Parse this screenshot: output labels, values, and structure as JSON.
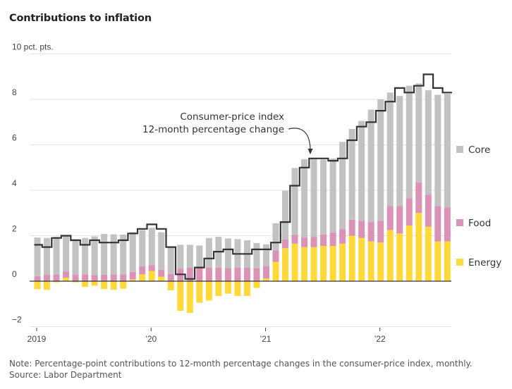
{
  "title": "Contributions to inflation",
  "note": "Note: Percentage-point contributions to 12-month percentage changes in the consumer-price index, monthly.",
  "source": "Source: Labor Department",
  "chart_data": {
    "type": "bar",
    "subtype": "stacked bar with step line",
    "title": "Contributions to inflation",
    "ylabel": "10 pct. pts.",
    "ylim": [
      -2,
      10
    ],
    "yticks": [
      -2,
      0,
      2,
      4,
      6,
      8,
      10
    ],
    "ytick_labels": [
      "−2",
      "0",
      "2",
      "4",
      "6",
      "8",
      "10 pct. pts."
    ],
    "xticks": [
      {
        "label": "2019",
        "index": 0
      },
      {
        "label": "'20",
        "index": 12
      },
      {
        "label": "'21",
        "index": 24
      },
      {
        "label": "'22",
        "index": 36
      }
    ],
    "grid": true,
    "legend_position": "right",
    "colors": {
      "core": "#c2c2c2",
      "food": "#db92b6",
      "energy": "#ffd83a",
      "cpi_line": "#333333"
    },
    "categories": [
      "2019-01",
      "2019-02",
      "2019-03",
      "2019-04",
      "2019-05",
      "2019-06",
      "2019-07",
      "2019-08",
      "2019-09",
      "2019-10",
      "2019-11",
      "2019-12",
      "2020-01",
      "2020-02",
      "2020-03",
      "2020-04",
      "2020-05",
      "2020-06",
      "2020-07",
      "2020-08",
      "2020-09",
      "2020-10",
      "2020-11",
      "2020-12",
      "2021-01",
      "2021-02",
      "2021-03",
      "2021-04",
      "2021-05",
      "2021-06",
      "2021-07",
      "2021-08",
      "2021-09",
      "2021-10",
      "2021-11",
      "2021-12",
      "2022-01",
      "2022-02",
      "2022-03",
      "2022-04",
      "2022-05",
      "2022-06",
      "2022-07",
      "2022-08"
    ],
    "series": [
      {
        "name": "Energy",
        "values": [
          -0.35,
          -0.38,
          -0.05,
          0.15,
          -0.05,
          -0.25,
          -0.2,
          -0.35,
          -0.38,
          -0.33,
          0.08,
          0.3,
          0.45,
          0.2,
          -0.4,
          -1.3,
          -1.4,
          -0.95,
          -0.85,
          -0.65,
          -0.55,
          -0.65,
          -0.65,
          -0.3,
          0.12,
          0.85,
          1.45,
          1.65,
          1.5,
          1.5,
          1.55,
          1.55,
          1.65,
          2.0,
          1.9,
          1.75,
          1.7,
          2.25,
          2.1,
          2.45,
          3.0,
          2.4,
          1.75,
          1.75
        ]
      },
      {
        "name": "Food",
        "values": [
          0.22,
          0.28,
          0.3,
          0.28,
          0.3,
          0.3,
          0.27,
          0.28,
          0.28,
          0.3,
          0.33,
          0.35,
          0.25,
          0.3,
          0.32,
          0.55,
          0.6,
          0.62,
          0.6,
          0.6,
          0.58,
          0.6,
          0.6,
          0.58,
          0.55,
          0.5,
          0.38,
          0.38,
          0.42,
          0.45,
          0.5,
          0.6,
          0.63,
          0.7,
          0.75,
          0.85,
          0.95,
          1.05,
          1.2,
          1.2,
          1.35,
          1.4,
          1.55,
          1.5
        ]
      },
      {
        "name": "Core",
        "values": [
          1.7,
          1.62,
          1.65,
          1.58,
          1.55,
          1.6,
          1.7,
          1.8,
          1.78,
          1.75,
          1.75,
          1.6,
          1.65,
          1.65,
          1.2,
          1.05,
          1.0,
          0.95,
          1.3,
          1.35,
          1.3,
          1.25,
          1.2,
          1.1,
          0.95,
          1.2,
          2.15,
          2.95,
          3.45,
          3.45,
          3.3,
          3.25,
          3.85,
          4.0,
          4.4,
          4.95,
          5.35,
          5.0,
          4.85,
          4.95,
          4.35,
          4.6,
          4.9,
          5.0
        ]
      }
    ],
    "line": {
      "name": "Consumer-price index 12-month percentage change",
      "values": [
        1.6,
        1.5,
        1.9,
        2.0,
        1.8,
        1.6,
        1.8,
        1.7,
        1.7,
        1.8,
        2.1,
        2.3,
        2.5,
        2.3,
        1.5,
        0.3,
        0.1,
        0.6,
        1.0,
        1.3,
        1.4,
        1.2,
        1.2,
        1.4,
        1.4,
        1.7,
        2.6,
        4.2,
        5.0,
        5.4,
        5.4,
        5.3,
        5.4,
        6.2,
        6.8,
        7.0,
        7.5,
        7.9,
        8.5,
        8.3,
        8.6,
        9.1,
        8.5,
        8.3
      ]
    },
    "annotations": [
      {
        "text_line1": "Consumer-price index",
        "text_line2": "12-month percentage change",
        "points_to": "2021-06"
      }
    ],
    "legend": [
      "Core",
      "Food",
      "Energy"
    ]
  }
}
